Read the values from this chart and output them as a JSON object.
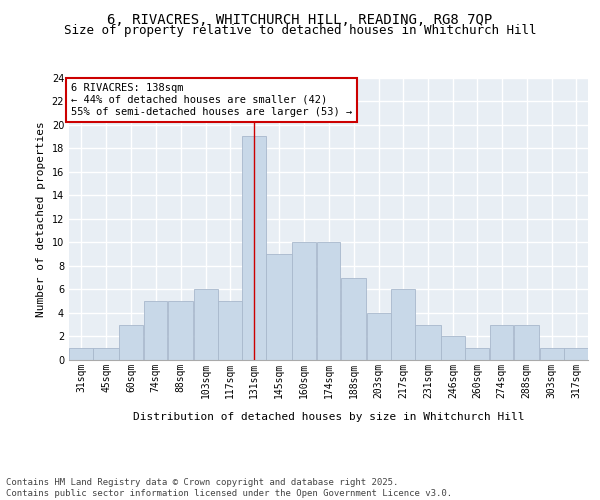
{
  "title1": "6, RIVACRES, WHITCHURCH HILL, READING, RG8 7QP",
  "title2": "Size of property relative to detached houses in Whitchurch Hill",
  "xlabel": "Distribution of detached houses by size in Whitchurch Hill",
  "ylabel": "Number of detached properties",
  "bar_color": "#c8d8e8",
  "bar_edge_color": "#a8b8cc",
  "background_color": "#e8eef4",
  "grid_color": "#ffffff",
  "vline_color": "#cc0000",
  "vline_x": 138,
  "annotation_title": "6 RIVACRES: 138sqm",
  "annotation_line1": "← 44% of detached houses are smaller (42)",
  "annotation_line2": "55% of semi-detached houses are larger (53) →",
  "bins": [
    31,
    45,
    60,
    74,
    88,
    103,
    117,
    131,
    145,
    160,
    174,
    188,
    203,
    217,
    231,
    246,
    260,
    274,
    288,
    303,
    317
  ],
  "counts": [
    1,
    1,
    3,
    5,
    5,
    6,
    5,
    19,
    9,
    10,
    10,
    7,
    4,
    6,
    3,
    2,
    1,
    3,
    3,
    1,
    1
  ],
  "ylim": [
    0,
    24
  ],
  "yticks": [
    0,
    2,
    4,
    6,
    8,
    10,
    12,
    14,
    16,
    18,
    20,
    22,
    24
  ],
  "footer": "Contains HM Land Registry data © Crown copyright and database right 2025.\nContains public sector information licensed under the Open Government Licence v3.0.",
  "title_fontsize": 10,
  "subtitle_fontsize": 9,
  "axis_label_fontsize": 8,
  "tick_fontsize": 7,
  "annotation_fontsize": 7.5,
  "footer_fontsize": 6.5
}
